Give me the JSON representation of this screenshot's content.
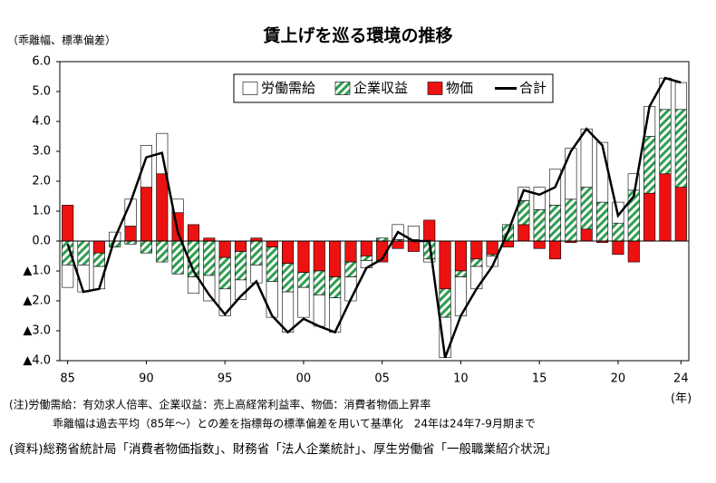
{
  "chart_data": {
    "type": "bar",
    "stacked": true,
    "title": "賃上げを巡る環境の推移",
    "ylabel": "（乖離幅、標準偏差）",
    "xlabel": "(年)",
    "notes": [
      "(注)労働需給：有効求人倍率、企業収益：売上高経常利益率、物価：消費者物価上昇率",
      "乖離幅は過去平均（85年～）との差を指標毎の標準偏差を用いて基準化　24年は24年7-9月期まで",
      "(資料)総務省統計局「消費者物価指数」、財務省「法人企業統計」、厚生労働省「一般職業紹介状況」"
    ],
    "categories": [
      "85",
      null,
      null,
      null,
      null,
      "90",
      null,
      null,
      null,
      null,
      "95",
      null,
      null,
      null,
      null,
      "00",
      null,
      null,
      null,
      null,
      "05",
      null,
      null,
      null,
      null,
      "10",
      null,
      null,
      null,
      null,
      "15",
      null,
      null,
      null,
      null,
      "20",
      null,
      null,
      null,
      "24"
    ],
    "series": [
      {
        "name": "労働需給",
        "color": "#ffffff",
        "pattern": "none",
        "values": [
          -0.75,
          -0.9,
          -0.75,
          0.3,
          0.9,
          1.4,
          1.35,
          0.45,
          -0.55,
          -0.85,
          -0.9,
          -0.65,
          -0.6,
          -1.2,
          -1.35,
          -1.0,
          -1.05,
          -1.15,
          -0.8,
          -0.25,
          0,
          0.5,
          0.45,
          -0.1,
          -1.35,
          -1.3,
          -0.75,
          -0.35,
          0,
          0.45,
          0.75,
          1.2,
          1.7,
          1.95,
          2.0,
          0.7,
          0.55,
          1.0,
          1.05,
          0.9
        ]
      },
      {
        "name": "企業収益",
        "color": "#2e9e4f",
        "pattern": "hatch",
        "values": [
          -0.8,
          -0.8,
          -0.45,
          -0.2,
          -0.1,
          -0.4,
          -0.7,
          -1.1,
          -1.2,
          -1.15,
          -1.05,
          -0.95,
          -0.8,
          -1.15,
          -0.95,
          -0.5,
          -0.8,
          -0.7,
          -0.5,
          -0.15,
          0.1,
          0.05,
          0.05,
          -0.6,
          -0.95,
          -0.2,
          -0.25,
          -0.05,
          0.55,
          0.8,
          1.05,
          1.2,
          1.4,
          1.4,
          1.3,
          0.6,
          1.7,
          1.9,
          2.15,
          2.6
        ]
      },
      {
        "name": "物価",
        "color": "#ee1111",
        "pattern": "none",
        "values": [
          1.2,
          0,
          -0.4,
          0,
          0.5,
          1.8,
          2.25,
          0.95,
          0.55,
          0.1,
          -0.55,
          -0.35,
          0.1,
          -0.2,
          -0.75,
          -1.05,
          -1.0,
          -1.2,
          -0.7,
          -0.5,
          -0.7,
          -0.25,
          -0.35,
          0.7,
          -1.6,
          -1.0,
          -0.6,
          -0.45,
          -0.2,
          0.55,
          -0.25,
          -0.6,
          -0.05,
          0.4,
          -0.05,
          -0.45,
          -0.7,
          1.6,
          2.25,
          1.8
        ]
      },
      {
        "name": "合計",
        "color": "#000000",
        "type": "line",
        "values": [
          -0.1,
          -1.7,
          -1.6,
          0.1,
          1.3,
          2.8,
          2.95,
          0.3,
          -1.0,
          -1.8,
          -2.45,
          -1.85,
          -1.35,
          -2.5,
          -3.05,
          -2.6,
          -2.85,
          -3.05,
          -1.95,
          -0.9,
          -0.6,
          0.3,
          0.0,
          0.0,
          -3.9,
          -2.5,
          -1.6,
          -0.85,
          0.3,
          1.7,
          1.55,
          1.8,
          3.0,
          3.75,
          3.2,
          0.85,
          1.5,
          4.5,
          5.45,
          5.3
        ]
      }
    ],
    "ylim": [
      -4,
      6
    ],
    "yticks": [
      {
        "value": -4,
        "label": "▲4.0"
      },
      {
        "value": -3,
        "label": "▲3.0"
      },
      {
        "value": -2,
        "label": "▲2.0"
      },
      {
        "value": -1,
        "label": "▲1.0"
      },
      {
        "value": 0,
        "label": "0.0"
      },
      {
        "value": 1,
        "label": "1.0"
      },
      {
        "value": 2,
        "label": "2.0"
      },
      {
        "value": 3,
        "label": "3.0"
      },
      {
        "value": 4,
        "label": "4.0"
      },
      {
        "value": 5,
        "label": "5.0"
      },
      {
        "value": 6,
        "label": "6.0"
      }
    ],
    "grid": false,
    "legend": "top"
  }
}
